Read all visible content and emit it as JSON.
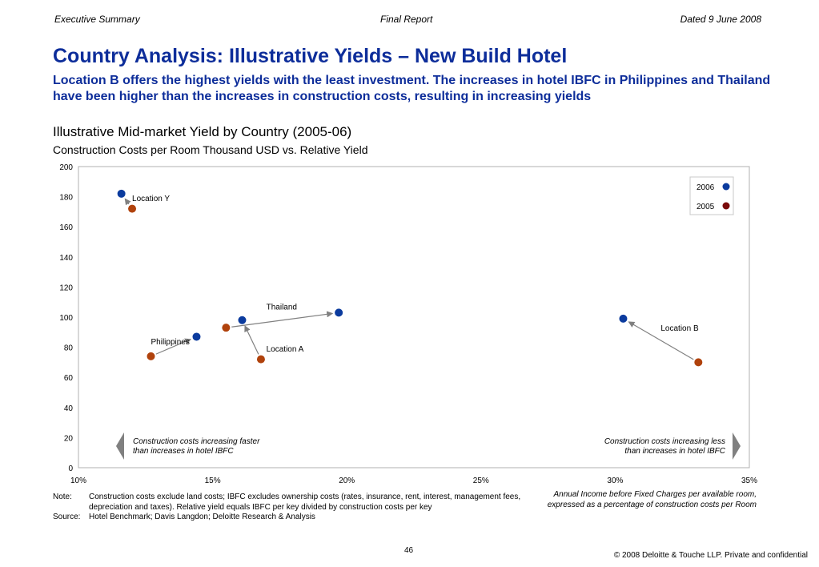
{
  "header": {
    "left": "Executive Summary",
    "center": "Final Report",
    "right": "Dated 9 June 2008"
  },
  "title": "Country Analysis: Illustrative Yields – New Build Hotel",
  "subtitle": "Location B offers the highest yields with the least investment. The increases in hotel IBFC in Philippines and Thailand have been higher than the increases in construction costs, resulting in increasing yields",
  "chart_heading": "Illustrative Mid-market Yield by Country (2005-06)",
  "chart_subheading": "Construction Costs per Room Thousand USD vs. Relative Yield",
  "chart_data": {
    "type": "scatter",
    "xlim": [
      0.1,
      0.35
    ],
    "ylim": [
      0,
      200
    ],
    "x_ticks": [
      "10%",
      "15%",
      "20%",
      "25%",
      "30%",
      "35%"
    ],
    "y_ticks": [
      "0",
      "20",
      "40",
      "60",
      "80",
      "100",
      "120",
      "140",
      "160",
      "180",
      "200"
    ],
    "grid": false,
    "legend_position": "top-right",
    "colors": {
      "2006": "#0b3b9e",
      "2005": "#b0420c",
      "legend_2005": "#7a0a0a",
      "arrow": "#808080"
    },
    "series": [
      {
        "name": "2006",
        "points": [
          {
            "label": "Location Y",
            "x": 0.116,
            "y": 182
          },
          {
            "label": "Philippines",
            "x": 0.144,
            "y": 87
          },
          {
            "label": "Location A",
            "x": 0.161,
            "y": 98
          },
          {
            "label": "Thailand",
            "x": 0.197,
            "y": 103
          },
          {
            "label": "Location B",
            "x": 0.303,
            "y": 99
          }
        ]
      },
      {
        "name": "2005",
        "points": [
          {
            "label": "Location Y",
            "x": 0.12,
            "y": 172
          },
          {
            "label": "Philippines",
            "x": 0.127,
            "y": 74
          },
          {
            "label": "Location A",
            "x": 0.168,
            "y": 72
          },
          {
            "label": "Thailand",
            "x": 0.155,
            "y": 93
          },
          {
            "label": "Location B",
            "x": 0.331,
            "y": 70
          }
        ]
      }
    ],
    "annotations": [
      {
        "text": "Location Y",
        "x": 0.12,
        "y": 177
      },
      {
        "text": "Philippines",
        "x": 0.127,
        "y": 82
      },
      {
        "text": "Thailand",
        "x": 0.17,
        "y": 105
      },
      {
        "text": "Location A",
        "x": 0.17,
        "y": 77
      },
      {
        "text": "Location B",
        "x": 0.317,
        "y": 91
      }
    ],
    "left_callout": [
      "Construction costs increasing faster",
      "than increases in hotel IBFC"
    ],
    "right_callout": [
      "Construction costs increasing less",
      "than increases in hotel IBFC"
    ]
  },
  "note_label": "Note:",
  "note_text": "Construction costs exclude land costs; IBFC excludes ownership costs (rates, insurance, rent, interest, management fees, depreciation and taxes). Relative yield equals IBFC per key divided by construction costs per key",
  "source_label": "Source:",
  "source_text": "Hotel Benchmark; Davis Langdon; Deloitte Research & Analysis",
  "xaxis_note": "Annual Income before Fixed Charges per available room, expressed as a percentage of construction costs per Room",
  "page_number": "46",
  "copyright": "© 2008 Deloitte & Touche LLP. Private and confidential"
}
